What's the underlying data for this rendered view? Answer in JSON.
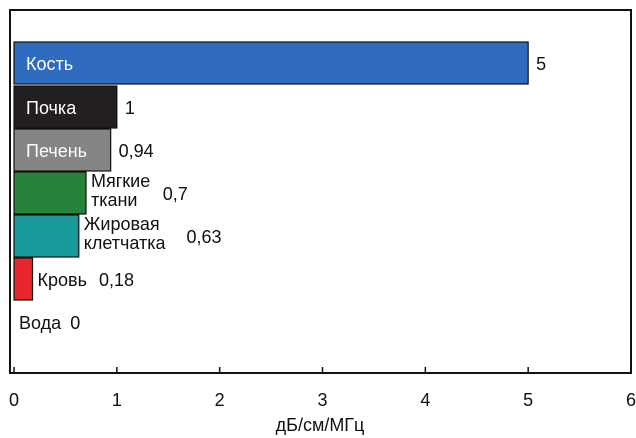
{
  "chart_data": {
    "type": "bar",
    "orientation": "horizontal",
    "categories": [
      [
        "Кость"
      ],
      [
        "Почка"
      ],
      [
        "Печень"
      ],
      [
        "Мягкие",
        "ткани"
      ],
      [
        "Жировая",
        "клетчатка"
      ],
      [
        "Кровь"
      ],
      [
        "Вода"
      ]
    ],
    "values": [
      5,
      1,
      0.94,
      0.7,
      0.63,
      0.18,
      0
    ],
    "value_labels": [
      "5",
      "1",
      "0,94",
      "0,7",
      "0,63",
      "0,18",
      "0"
    ],
    "colors": [
      "#2f6bbf",
      "#231f20",
      "#858585",
      "#27833a",
      "#1a9a9a",
      "#e8262b",
      "#ffffff"
    ],
    "label_inside": [
      true,
      true,
      true,
      false,
      false,
      false,
      false
    ],
    "xlabel": "дБ/см/МГц",
    "ylabel": "",
    "xlim": [
      0,
      6
    ],
    "xticks": [
      0,
      1,
      2,
      3,
      4,
      5,
      6
    ],
    "grid": false
  }
}
